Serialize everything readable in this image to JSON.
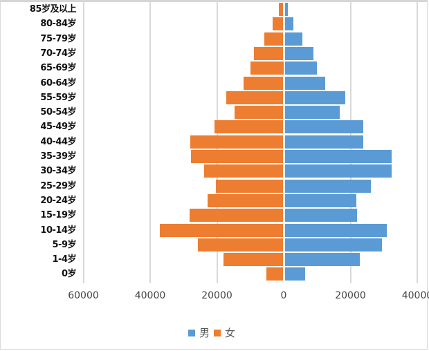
{
  "chart_data": {
    "type": "bar",
    "orientation": "horizontal",
    "subtype": "population-pyramid",
    "title": "",
    "xlabel": "",
    "ylabel": "",
    "categories": [
      "85岁及以上",
      "80-84岁",
      "75-79岁",
      "70-74岁",
      "65-69岁",
      "60-64岁",
      "55-59岁",
      "50-54岁",
      "45-49岁",
      "40-44岁",
      "35-39岁",
      "30-34岁",
      "25-29岁",
      "20-24岁",
      "15-19岁",
      "10-14岁",
      "5-9岁",
      "1-4岁",
      "0岁"
    ],
    "series": [
      {
        "name": "男",
        "color": "#5b9bd5",
        "side": "right",
        "values": [
          1000,
          2500,
          5200,
          8500,
          9700,
          12200,
          18200,
          16400,
          23600,
          23600,
          32100,
          32100,
          25900,
          21400,
          21600,
          30500,
          29200,
          22400,
          6200
        ]
      },
      {
        "name": "女",
        "color": "#ed7d31",
        "side": "left",
        "values": [
          1500,
          3300,
          5800,
          8900,
          10000,
          12000,
          17200,
          14700,
          20700,
          28000,
          27800,
          23800,
          20300,
          22800,
          28200,
          37100,
          25700,
          18000,
          5200
        ]
      }
    ],
    "xticks": [
      "60000",
      "40000",
      "20000",
      "0",
      "20000",
      "40000"
    ],
    "xlim": [
      -60000,
      40000
    ],
    "grid": true,
    "legend_position": "bottom"
  },
  "legend": [
    {
      "label": "男",
      "color": "#5b9bd5"
    },
    {
      "label": "女",
      "color": "#ed7d31"
    }
  ]
}
